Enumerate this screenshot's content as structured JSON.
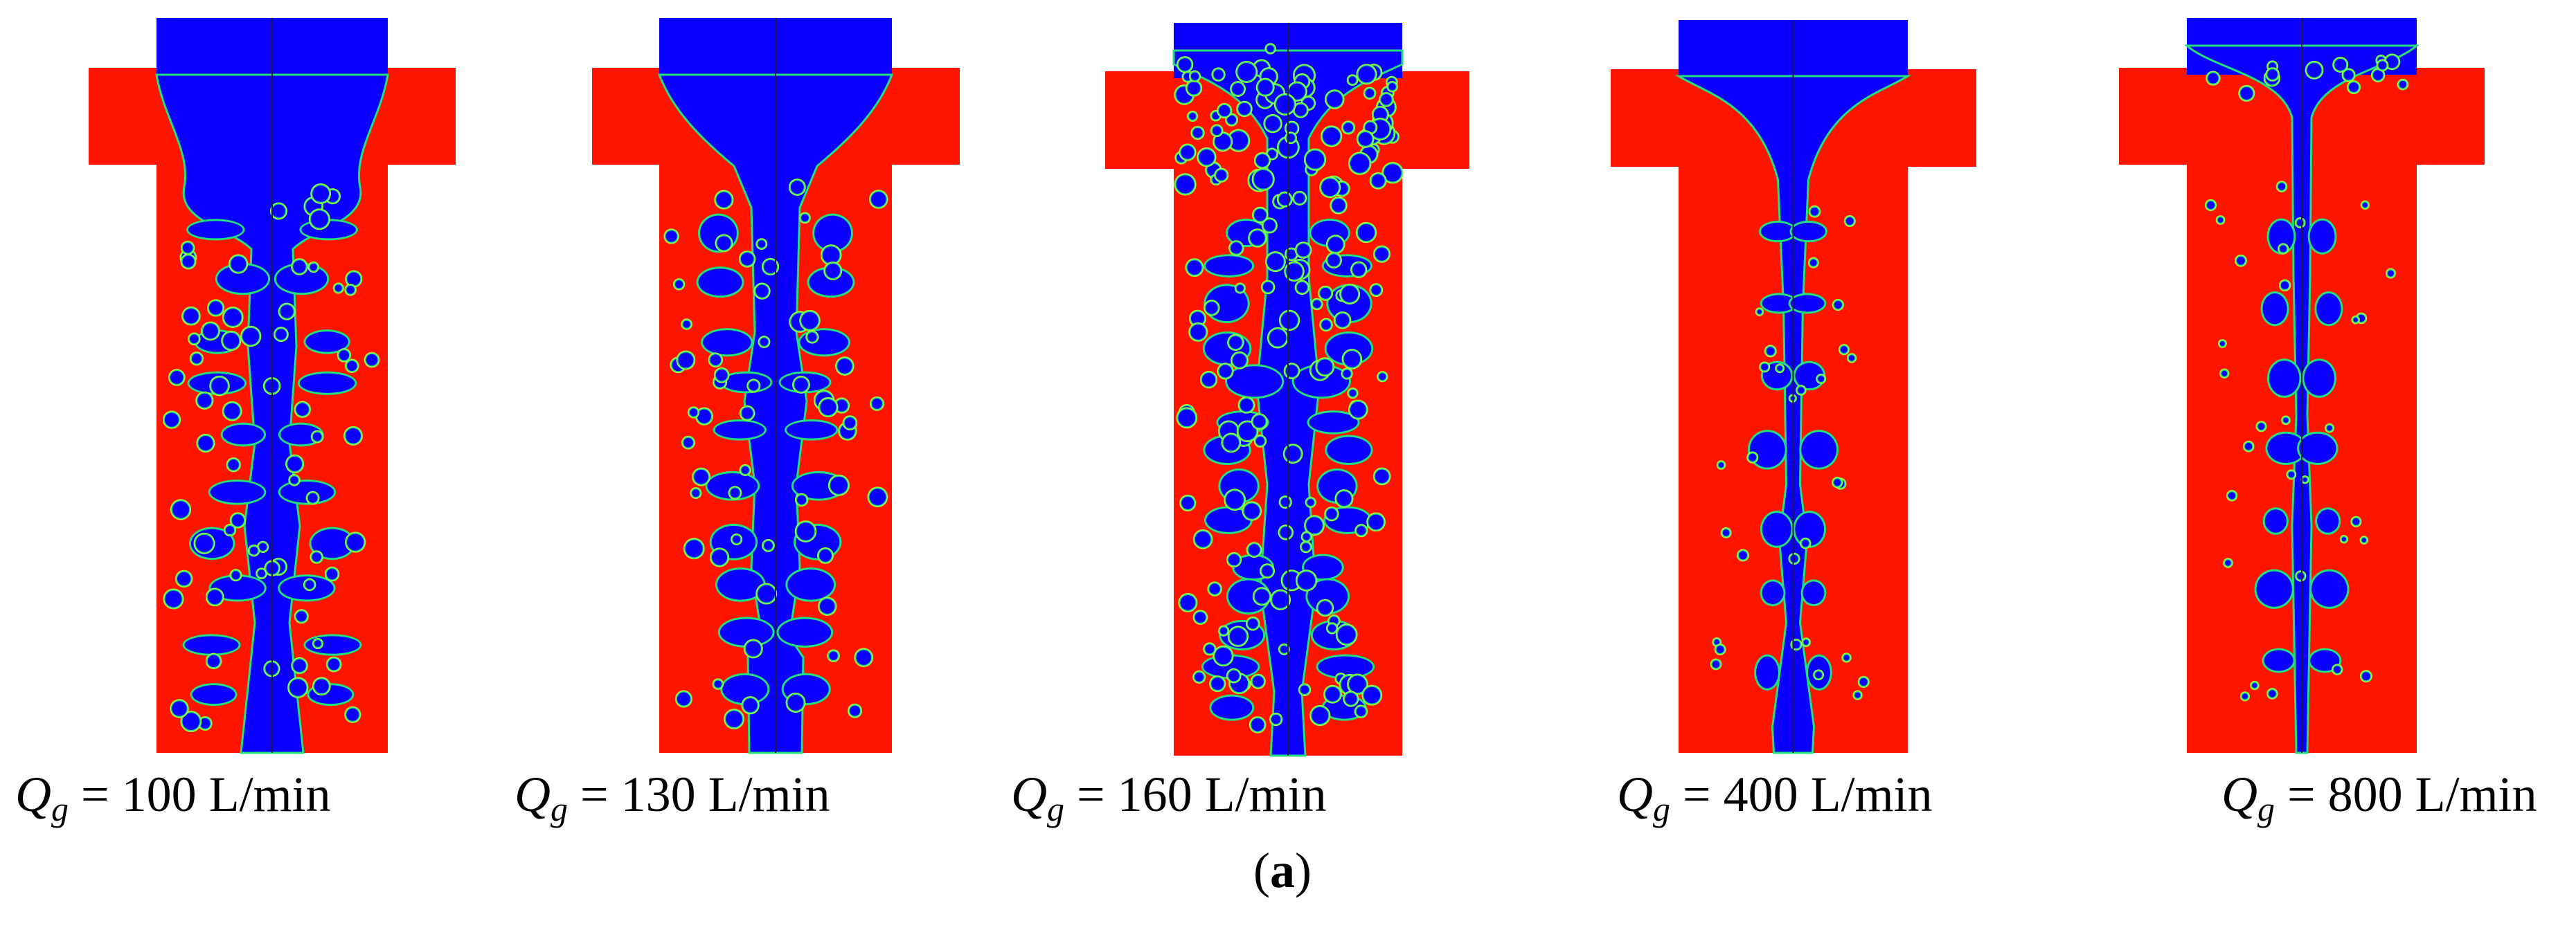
{
  "figure": {
    "label_open": "(",
    "label_letter": "a",
    "label_close": ")"
  },
  "colors": {
    "liquid": "#ff1400",
    "gas": "#0a00ff",
    "interface": "#22e07a",
    "interface_outer": "#9cff3a",
    "centerline": "#1a1a40",
    "background": "#ffffff"
  },
  "panels": [
    {
      "symbol": "Q",
      "subscript": "g",
      "value_text": " = 100 L/min",
      "flow_rate": 100
    },
    {
      "symbol": "Q",
      "subscript": "g",
      "value_text": " = 130 L/min",
      "flow_rate": 130
    },
    {
      "symbol": "Q",
      "subscript": "g",
      "value_text": " = 160 L/min",
      "flow_rate": 160
    },
    {
      "symbol": "Q",
      "subscript": "g",
      "value_text": " = 400 L/min",
      "flow_rate": 400
    },
    {
      "symbol": "Q",
      "subscript": "g",
      "value_text": " = 800 L/min",
      "flow_rate": 800
    }
  ]
}
